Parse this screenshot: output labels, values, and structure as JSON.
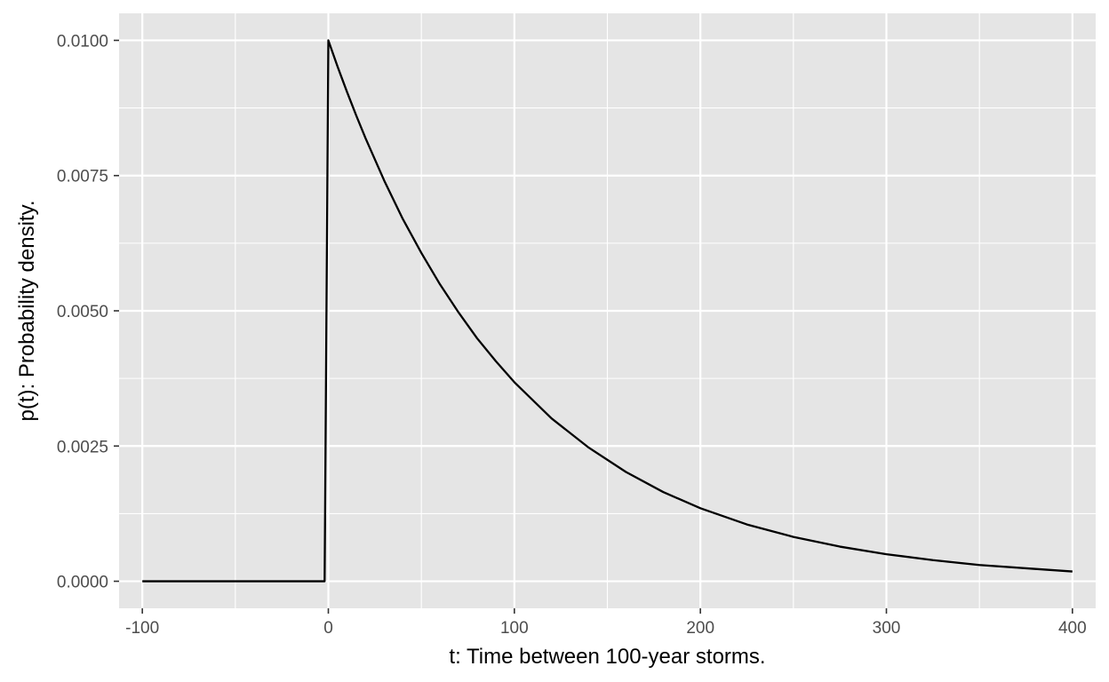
{
  "chart_data": {
    "type": "line",
    "title": "",
    "xlabel": "t: Time between 100-year storms.",
    "ylabel": "p(t): Probability density.",
    "xlim": [
      -112.5,
      412.5
    ],
    "ylim": [
      -0.0005,
      0.0105
    ],
    "x_ticks": [
      -100,
      0,
      100,
      200,
      300,
      400
    ],
    "x_tick_labels": [
      "-100",
      "0",
      "100",
      "200",
      "300",
      "400"
    ],
    "y_ticks": [
      0,
      0.0025,
      0.005,
      0.0075,
      0.01
    ],
    "y_tick_labels": [
      "0.0000",
      "0.0025",
      "0.0050",
      "0.0075",
      "0.0100"
    ],
    "x_minor_ticks": [
      -50,
      50,
      150,
      250,
      350
    ],
    "y_minor_ticks": [
      0.00125,
      0.00375,
      0.00625,
      0.00875
    ],
    "grid": true,
    "legend": "none",
    "colors": {
      "panel_background": "#e5e5e5",
      "grid": "#ffffff",
      "line": "#000000",
      "tick_label": "#4d4d4d",
      "axis_title": "#000000"
    },
    "series": [
      {
        "x": [
          -100,
          -75,
          -50,
          -25,
          -2,
          0,
          5,
          10,
          15,
          20,
          30,
          40,
          50,
          60,
          70,
          80,
          90,
          100,
          120,
          140,
          160,
          180,
          200,
          225,
          250,
          275,
          300,
          325,
          350,
          375,
          400
        ],
        "y": [
          0,
          0,
          0,
          0,
          0,
          0.01,
          0.00951,
          0.00905,
          0.00861,
          0.00819,
          0.00741,
          0.0067,
          0.00607,
          0.00549,
          0.00497,
          0.00449,
          0.00407,
          0.00368,
          0.00301,
          0.00247,
          0.00202,
          0.00165,
          0.00135,
          0.00105,
          0.00082,
          0.00064,
          0.0005,
          0.00039,
          0.0003,
          0.00024,
          0.00018
        ]
      }
    ]
  }
}
